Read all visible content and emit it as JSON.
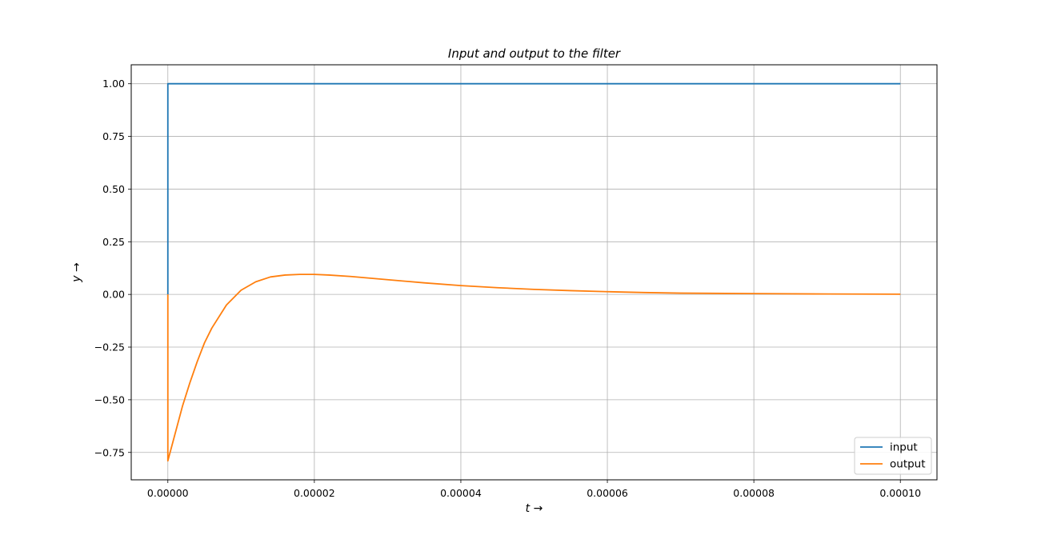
{
  "chart_data": {
    "type": "line",
    "title": "Input and output to the filter",
    "xlabel": "t →",
    "ylabel": "y →",
    "xlim": [
      -5e-06,
      0.000105
    ],
    "ylim": [
      -0.88,
      1.09
    ],
    "grid": true,
    "legend_position": "lower-right",
    "x_ticks": [
      0,
      2e-05,
      4e-05,
      6e-05,
      8e-05,
      0.0001
    ],
    "x_tick_labels": [
      "0.00000",
      "0.00002",
      "0.00004",
      "0.00006",
      "0.00008",
      "0.00010"
    ],
    "y_ticks": [
      1.0,
      0.75,
      0.5,
      0.25,
      0.0,
      -0.25,
      -0.5,
      -0.75
    ],
    "y_tick_labels": [
      "1.00",
      "0.75",
      "0.50",
      "0.25",
      "0.00",
      "−0.25",
      "−0.50",
      "−0.75"
    ],
    "series": [
      {
        "name": "input",
        "color": "#1f77b4",
        "x": [
          0,
          0,
          0.0001
        ],
        "y": [
          0,
          1.0,
          1.0
        ]
      },
      {
        "name": "output",
        "color": "#ff7f0e",
        "x": [
          0,
          0,
          1e-06,
          2e-06,
          3e-06,
          4e-06,
          5e-06,
          6e-06,
          8e-06,
          1e-05,
          1.2e-05,
          1.4e-05,
          1.6e-05,
          1.8e-05,
          2e-05,
          2.2e-05,
          2.5e-05,
          3e-05,
          3.5e-05,
          4e-05,
          4.5e-05,
          5e-05,
          5.5e-05,
          6e-05,
          6.5e-05,
          7e-05,
          8e-05,
          9e-05,
          0.0001
        ],
        "y": [
          0,
          -0.79,
          -0.66,
          -0.53,
          -0.42,
          -0.32,
          -0.23,
          -0.16,
          -0.05,
          0.02,
          0.06,
          0.083,
          0.092,
          0.095,
          0.095,
          0.092,
          0.085,
          0.07,
          0.055,
          0.042,
          0.032,
          0.024,
          0.018,
          0.013,
          0.009,
          0.006,
          0.004,
          0.002,
          0.001
        ]
      }
    ]
  }
}
